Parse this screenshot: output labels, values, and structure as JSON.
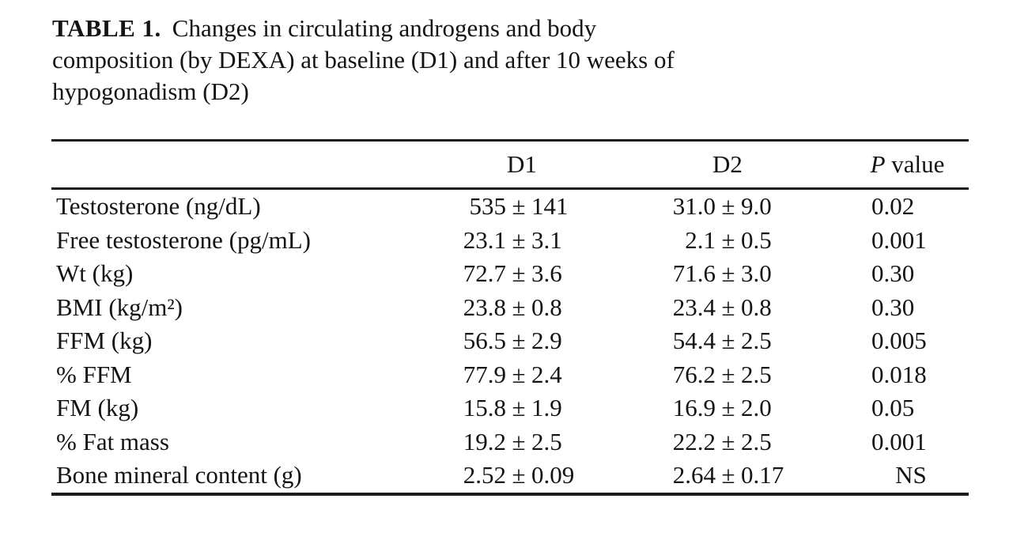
{
  "title": {
    "label": "TABLE 1.",
    "lines": [
      "Changes in circulating androgens and body",
      "composition (by DEXA) at baseline (D1) and after 10 weeks of",
      "hypogonadism (D2)"
    ]
  },
  "table": {
    "plus_minus": "±",
    "columns": {
      "d1": "D1",
      "d2": "D2",
      "p_italic": "P",
      "p_rest": " value"
    },
    "rows": [
      {
        "label": "Testosterone (ng/dL)",
        "d1v": "535",
        "d1e": "141",
        "d2v": "31.0",
        "d2e": "9.0",
        "p": "0.02"
      },
      {
        "label": "Free testosterone (pg/mL)",
        "d1v": "23.1",
        "d1e": "3.1",
        "d2v": "2.1",
        "d2e": "0.5",
        "p": "0.001"
      },
      {
        "label": "Wt (kg)",
        "d1v": "72.7",
        "d1e": "3.6",
        "d2v": "71.6",
        "d2e": "3.0",
        "p": "0.30"
      },
      {
        "label": "BMI (kg/m²)",
        "d1v": "23.8",
        "d1e": "0.8",
        "d2v": "23.4",
        "d2e": "0.8",
        "p": "0.30"
      },
      {
        "label": "FFM (kg)",
        "d1v": "56.5",
        "d1e": "2.9",
        "d2v": "54.4",
        "d2e": "2.5",
        "p": "0.005"
      },
      {
        "label": "% FFM",
        "d1v": "77.9",
        "d1e": "2.4",
        "d2v": "76.2",
        "d2e": "2.5",
        "p": "0.018"
      },
      {
        "label": "FM (kg)",
        "d1v": "15.8",
        "d1e": "1.9",
        "d2v": "16.9",
        "d2e": "2.0",
        "p": "0.05"
      },
      {
        "label": "% Fat mass",
        "d1v": "19.2",
        "d1e": "2.5",
        "d2v": "22.2",
        "d2e": "2.5",
        "p": "0.001"
      },
      {
        "label": "Bone mineral content (g)",
        "d1v": "2.52",
        "d1e": "0.09",
        "d2v": "2.64",
        "d2e": "0.17",
        "p": "NS"
      }
    ]
  },
  "colors": {
    "background": "#ffffff",
    "text": "#141414",
    "rule": "#1b1b1b"
  }
}
